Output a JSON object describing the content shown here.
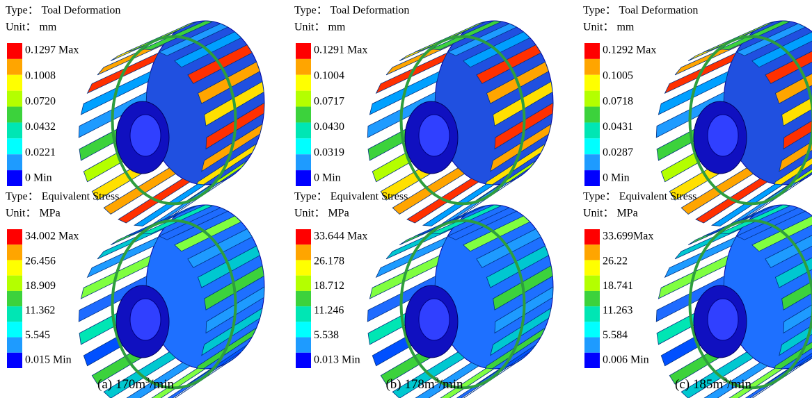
{
  "panels": [
    {
      "deformation": {
        "type": "Type： Toal Deformation",
        "unit": "Unit： mm",
        "legend": [
          "0.1297 Max",
          "0.1008",
          "0.0720",
          "0.0432",
          "0.0221",
          "0 Min"
        ]
      },
      "stress": {
        "type": "Type： Equivalent Stress",
        "unit": "Unit： MPa",
        "legend": [
          "34.002 Max",
          "26.456",
          "18.909",
          "11.362",
          "5.545",
          "0.015 Min"
        ]
      },
      "caption": {
        "prefix": "(a) 170m",
        "sup": "3",
        "suffix": "/min"
      }
    },
    {
      "deformation": {
        "type": "Type： Toal Deformation",
        "unit": "Unit： mm",
        "legend": [
          "0.1291 Max",
          "0.1004",
          "0.0717",
          "0.0430",
          "0.0319",
          "0 Min"
        ]
      },
      "stress": {
        "type": "Type： Equivalent Stress",
        "unit": "Unit： MPa",
        "legend": [
          "33.644 Max",
          "26.178",
          "18.712",
          "11.246",
          "5.538",
          "0.013 Min"
        ]
      },
      "caption": {
        "prefix": "(b) 178m",
        "sup": "3",
        "suffix": "/min"
      }
    },
    {
      "deformation": {
        "type": "Type： Toal Deformation",
        "unit": "Unit： mm",
        "legend": [
          "0.1292 Max",
          "0.1005",
          "0.0718",
          "0.0431",
          "0.0287",
          "0 Min"
        ]
      },
      "stress": {
        "type": "Type： Equivalent Stress",
        "unit": "Unit： MPa",
        "legend": [
          "33.699Max",
          "26.22",
          "18.741",
          "11.263",
          "5.584",
          "0.006 Min"
        ]
      },
      "caption": {
        "prefix": "(c) 185m",
        "sup": "3",
        "suffix": "/min"
      }
    }
  ]
}
